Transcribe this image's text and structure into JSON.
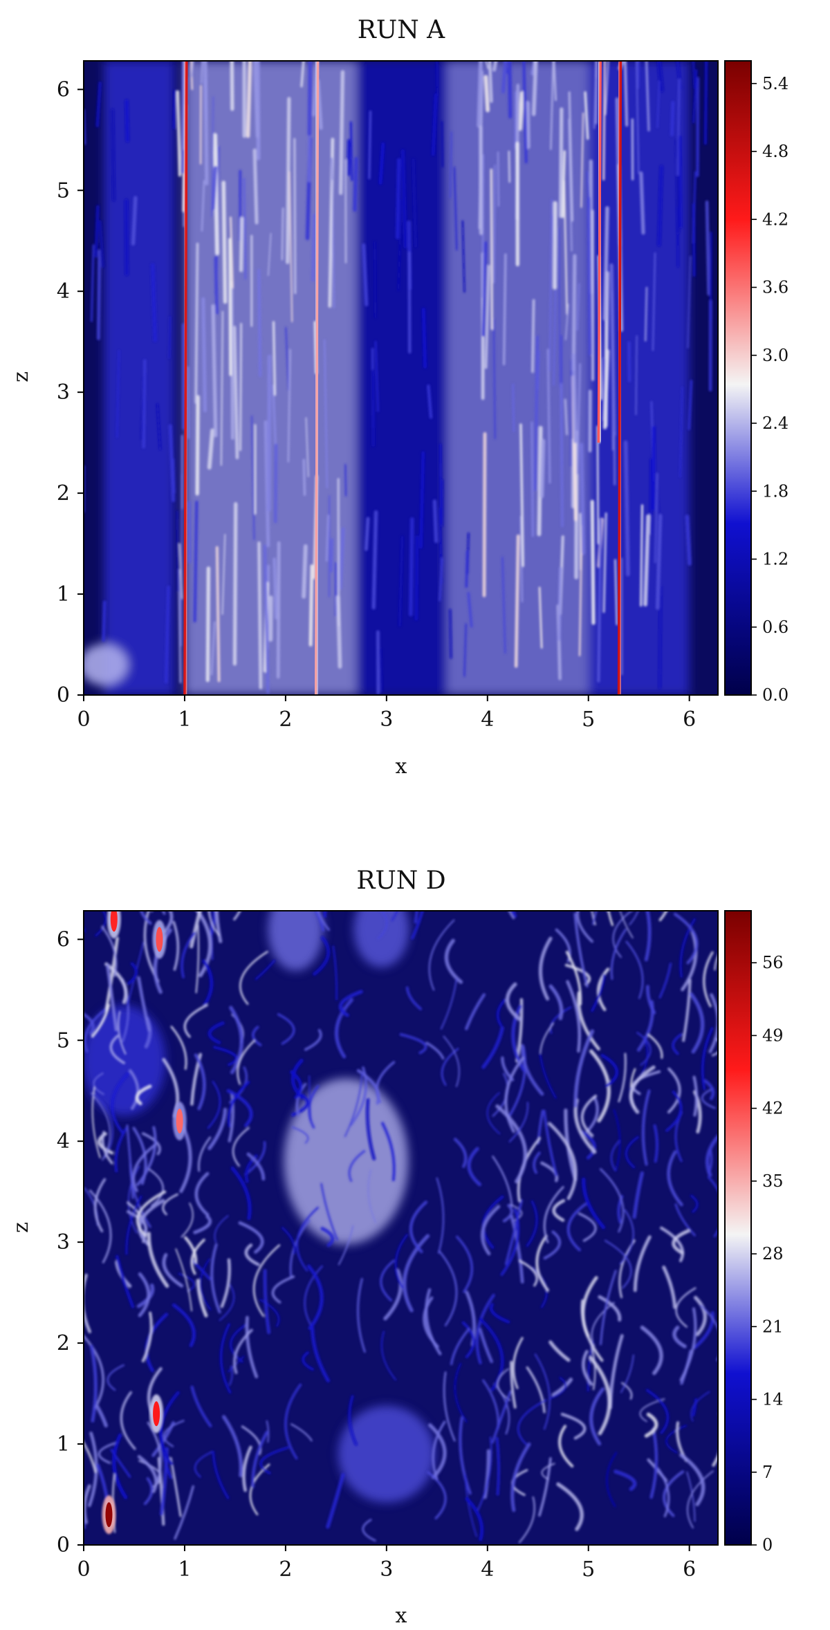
{
  "chart_data": [
    {
      "type": "heatmap",
      "title": "RUN A",
      "xlabel": "x",
      "ylabel": "z",
      "xlim": [
        0,
        6.2832
      ],
      "ylim": [
        0,
        6.2832
      ],
      "x_ticks": [
        0,
        1,
        2,
        3,
        4,
        5,
        6
      ],
      "y_ticks": [
        0,
        1,
        2,
        3,
        4,
        5,
        6
      ],
      "colorbar": {
        "min": 0.0,
        "max": 5.6,
        "ticks": [
          "0.0",
          "0.6",
          "1.2",
          "1.8",
          "2.4",
          "3.0",
          "3.6",
          "4.2",
          "4.8",
          "5.4"
        ]
      },
      "colormap": [
        "#00004a",
        "#1414d8",
        "#f4f4f4",
        "#ff1a1a",
        "#7a0000"
      ],
      "features": [
        {
          "x": 1.0,
          "z0": 0.0,
          "z1": 6.28,
          "peak": 4.6
        },
        {
          "x": 2.3,
          "z0": 0.0,
          "z1": 6.28,
          "peak": 3.3
        },
        {
          "x": 5.3,
          "z0": 0.0,
          "z1": 6.28,
          "peak": 4.7
        },
        {
          "x": 5.1,
          "z0": 2.5,
          "z1": 6.28,
          "peak": 3.8
        }
      ]
    },
    {
      "type": "heatmap",
      "title": "RUN D",
      "xlabel": "x",
      "ylabel": "z",
      "xlim": [
        0,
        6.2832
      ],
      "ylim": [
        0,
        6.2832
      ],
      "x_ticks": [
        0,
        1,
        2,
        3,
        4,
        5,
        6
      ],
      "y_ticks": [
        0,
        1,
        2,
        3,
        4,
        5,
        6
      ],
      "colorbar": {
        "min": 0,
        "max": 61,
        "ticks": [
          "0",
          "7",
          "14",
          "21",
          "28",
          "35",
          "42",
          "49",
          "56"
        ]
      },
      "colormap": [
        "#00004a",
        "#1414d8",
        "#f4f4f4",
        "#ff1a1a",
        "#7a0000"
      ],
      "features": [
        {
          "x": 0.25,
          "z": 0.3,
          "peak": 58
        },
        {
          "x": 0.3,
          "z": 6.2,
          "peak": 45
        },
        {
          "x": 0.75,
          "z": 6.0,
          "peak": 42
        },
        {
          "x": 0.95,
          "z": 4.2,
          "peak": 40
        },
        {
          "x": 0.72,
          "z": 1.3,
          "peak": 46
        }
      ]
    }
  ]
}
